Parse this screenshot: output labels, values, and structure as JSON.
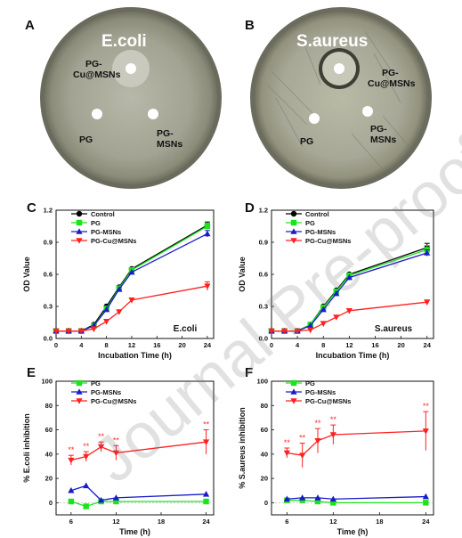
{
  "panel_letters": {
    "A": "A",
    "B": "B",
    "C": "C",
    "D": "D",
    "E": "E",
    "F": "F"
  },
  "plates": {
    "A": {
      "title": "E.coli",
      "labels": {
        "cu": "PG-\nCu@MSNs",
        "pg": "PG",
        "msns": "PG-\nMSNs"
      }
    },
    "B": {
      "title": "S.aureus",
      "labels": {
        "cu": "PG-\nCu@MSNs",
        "pg": "PG",
        "msns": "PG-\nMSNs"
      }
    }
  },
  "watermark": "Journal Pre-proof",
  "colors": {
    "Control": "#000000",
    "PG": "#19e619",
    "PG-MSNs": "#1a1acc",
    "PG-Cu@MSNs": "#ff2020"
  },
  "chart_data": [
    {
      "panel": "C",
      "type": "line",
      "xlabel": "Incubation Time (h)",
      "ylabel": "OD Value",
      "tag": "E.coli",
      "xlim": [
        0,
        25
      ],
      "ylim": [
        0,
        1.2
      ],
      "xticks": [
        0,
        4,
        8,
        12,
        16,
        20,
        24
      ],
      "yticks": [
        0,
        0.3,
        0.6,
        0.9,
        1.2
      ],
      "ytick_labels": [
        "0.0",
        "0.3",
        "0.6",
        "0.9",
        "1.2"
      ],
      "legend_position": "top-left",
      "x": [
        0,
        2,
        4,
        6,
        8,
        10,
        12,
        24
      ],
      "series": [
        {
          "name": "Control",
          "marker": "circle",
          "values": [
            0.07,
            0.07,
            0.07,
            0.13,
            0.3,
            0.48,
            0.65,
            1.06
          ],
          "err": [
            0,
            0,
            0,
            0,
            0,
            0,
            0,
            0.03
          ]
        },
        {
          "name": "PG",
          "marker": "square",
          "values": [
            0.07,
            0.07,
            0.07,
            0.12,
            0.28,
            0.47,
            0.64,
            1.05
          ],
          "err": [
            0,
            0,
            0,
            0,
            0,
            0,
            0,
            0.03
          ]
        },
        {
          "name": "PG-MSNs",
          "marker": "triangle-up",
          "values": [
            0.07,
            0.07,
            0.07,
            0.12,
            0.27,
            0.46,
            0.62,
            0.98
          ],
          "err": [
            0,
            0,
            0,
            0,
            0,
            0,
            0,
            0.03
          ]
        },
        {
          "name": "PG-Cu@MSNs",
          "marker": "triangle-down",
          "values": [
            0.07,
            0.07,
            0.07,
            0.09,
            0.16,
            0.25,
            0.36,
            0.49
          ],
          "err": [
            0,
            0,
            0,
            0,
            0,
            0,
            0,
            0.04
          ]
        }
      ]
    },
    {
      "panel": "D",
      "type": "line",
      "xlabel": "Incubation Time (h)",
      "ylabel": "OD Value",
      "tag": "S.aureus",
      "xlim": [
        0,
        25
      ],
      "ylim": [
        0,
        1.2
      ],
      "xticks": [
        0,
        4,
        8,
        12,
        16,
        20,
        24
      ],
      "yticks": [
        0,
        0.3,
        0.6,
        0.9,
        1.2
      ],
      "ytick_labels": [
        "0.0",
        "0.3",
        "0.6",
        "0.9",
        "1.2"
      ],
      "legend_position": "top-left",
      "x": [
        0,
        2,
        4,
        6,
        8,
        10,
        12,
        24
      ],
      "series": [
        {
          "name": "Control",
          "marker": "circle",
          "values": [
            0.07,
            0.07,
            0.07,
            0.13,
            0.3,
            0.45,
            0.6,
            0.85
          ],
          "err": [
            0,
            0,
            0,
            0,
            0,
            0,
            0,
            0.04
          ]
        },
        {
          "name": "PG",
          "marker": "square",
          "values": [
            0.07,
            0.07,
            0.07,
            0.13,
            0.29,
            0.44,
            0.59,
            0.83
          ],
          "err": [
            0,
            0,
            0,
            0,
            0,
            0,
            0,
            0.04
          ]
        },
        {
          "name": "PG-MSNs",
          "marker": "triangle-up",
          "values": [
            0.07,
            0.07,
            0.07,
            0.12,
            0.27,
            0.42,
            0.57,
            0.8
          ],
          "err": [
            0,
            0,
            0,
            0,
            0,
            0,
            0,
            0.03
          ]
        },
        {
          "name": "PG-Cu@MSNs",
          "marker": "triangle-down",
          "values": [
            0.07,
            0.07,
            0.07,
            0.08,
            0.14,
            0.2,
            0.26,
            0.34
          ],
          "err": [
            0,
            0,
            0,
            0,
            0,
            0,
            0,
            0.02
          ]
        }
      ]
    },
    {
      "panel": "E",
      "type": "line",
      "xlabel": "Time (h)",
      "ylabel": "% E.coli inhibition",
      "xlim": [
        4,
        25
      ],
      "ylim": [
        -10,
        100
      ],
      "xticks": [
        6,
        12,
        18,
        24
      ],
      "yticks": [
        0,
        20,
        40,
        60,
        80,
        100
      ],
      "ytick_labels": [
        "0",
        "20",
        "40",
        "60",
        "80",
        "100"
      ],
      "legend_position": "top-left",
      "x": [
        6,
        8,
        10,
        12,
        24
      ],
      "annotation": "**",
      "series": [
        {
          "name": "PG",
          "marker": "square",
          "values": [
            1,
            -3,
            1,
            1,
            1
          ],
          "err": [
            0,
            0,
            0,
            0,
            0
          ]
        },
        {
          "name": "PG-MSNs",
          "marker": "triangle-up",
          "values": [
            10,
            14,
            2,
            4,
            7
          ],
          "err": [
            0,
            0,
            0,
            0,
            0
          ]
        },
        {
          "name": "PG-Cu@MSNs",
          "marker": "triangle-down",
          "values": [
            35,
            38,
            46,
            41,
            50
          ],
          "err": [
            4,
            4,
            4,
            6,
            10
          ],
          "stars": [
            true,
            true,
            true,
            true,
            true
          ]
        }
      ]
    },
    {
      "panel": "F",
      "type": "line",
      "xlabel": "Time (h)",
      "ylabel": "% S.aureus inhibition",
      "xlim": [
        4,
        25
      ],
      "ylim": [
        -10,
        100
      ],
      "xticks": [
        6,
        12,
        18,
        24
      ],
      "yticks": [
        0,
        20,
        40,
        60,
        80,
        100
      ],
      "ytick_labels": [
        "0",
        "20",
        "40",
        "60",
        "80",
        "100"
      ],
      "legend_position": "top-left",
      "x": [
        6,
        8,
        10,
        12,
        24
      ],
      "annotation": "**",
      "series": [
        {
          "name": "PG",
          "marker": "square",
          "values": [
            2,
            2,
            1,
            0,
            0
          ],
          "err": [
            0,
            0,
            0,
            0,
            0
          ]
        },
        {
          "name": "PG-MSNs",
          "marker": "triangle-up",
          "values": [
            3,
            4,
            4,
            3,
            5
          ],
          "err": [
            0,
            0,
            0,
            0,
            0
          ]
        },
        {
          "name": "PG-Cu@MSNs",
          "marker": "triangle-down",
          "values": [
            41,
            39,
            51,
            56,
            59
          ],
          "err": [
            4,
            10,
            10,
            8,
            16
          ],
          "stars": [
            true,
            true,
            true,
            true,
            true
          ]
        }
      ]
    }
  ]
}
